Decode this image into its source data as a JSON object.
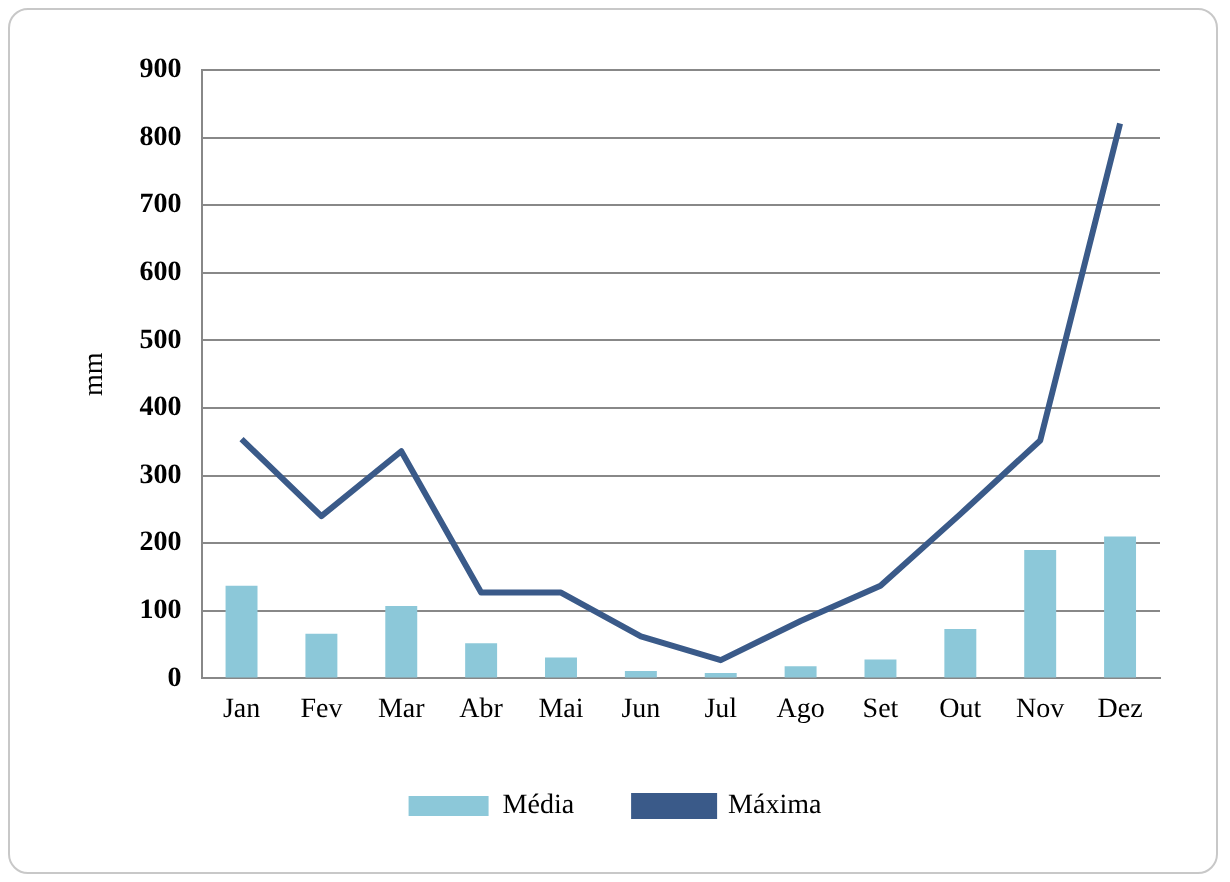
{
  "chart_data": {
    "type": "bar",
    "ylabel": "mm",
    "categories": [
      "Jan",
      "Fev",
      "Mar",
      "Abr",
      "Mai",
      "Jun",
      "Jul",
      "Ago",
      "Set",
      "Out",
      "Nov",
      "Dez"
    ],
    "series": [
      {
        "name": "Média",
        "color": "#8cc8d9",
        "values": [
          137,
          66,
          107,
          52,
          31,
          11,
          8,
          18,
          28,
          73,
          190,
          210
        ]
      },
      {
        "name": "Máxima",
        "type": "line",
        "color": "#3a5a89",
        "values": [
          354,
          240,
          336,
          127,
          127,
          62,
          27,
          85,
          137,
          243,
          352,
          821
        ]
      }
    ],
    "ylim": [
      0,
      900
    ],
    "yticks": [
      0,
      100,
      200,
      300,
      400,
      500,
      600,
      700,
      800,
      900
    ],
    "grid": "y",
    "legend": "bottom",
    "marker": "none"
  }
}
